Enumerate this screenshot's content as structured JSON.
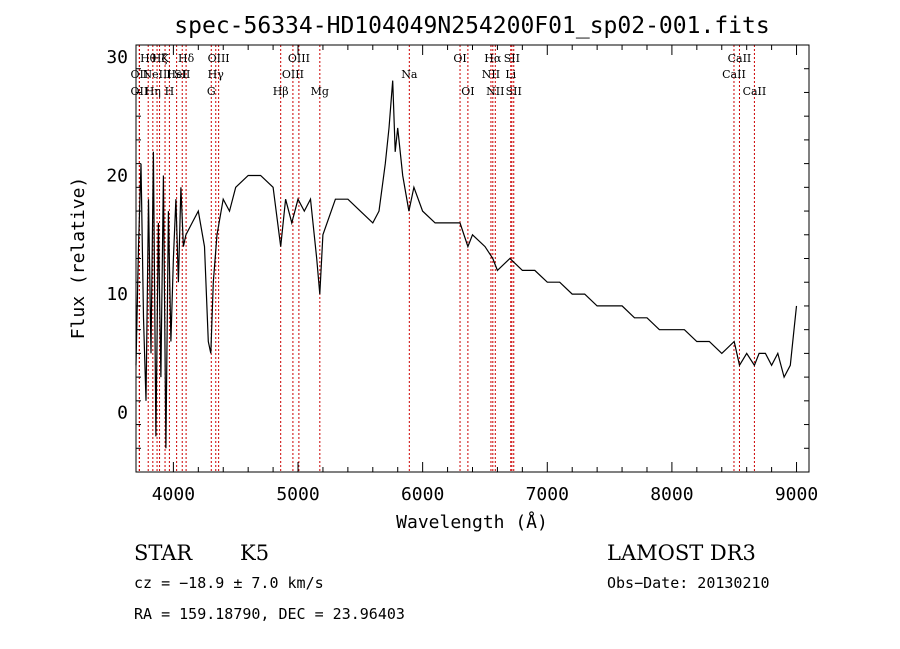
{
  "chart_data": {
    "type": "line",
    "title": "spec-56334-HD104049N254200F01_sp02-001.fits",
    "xlabel": "Wavelength (Å)",
    "ylabel": "Flux (relative)",
    "xlim": [
      3700,
      9100
    ],
    "ylim": [
      -5,
      31
    ],
    "xticks": [
      4000,
      5000,
      6000,
      7000,
      8000,
      9000
    ],
    "yticks": [
      0,
      10,
      20,
      30
    ],
    "grid": false,
    "line_color": "#000000",
    "marker_color": "#cc0000",
    "series": [
      {
        "x": [
          3700,
          3720,
          3740,
          3760,
          3780,
          3800,
          3820,
          3840,
          3860,
          3880,
          3900,
          3920,
          3940,
          3960,
          3980,
          4000,
          4020,
          4040,
          4060,
          4080,
          4100,
          4150,
          4200,
          4250,
          4280,
          4300,
          4320,
          4350,
          4400,
          4450,
          4500,
          4600,
          4700,
          4800,
          4861,
          4900,
          4950,
          5000,
          5050,
          5100,
          5150,
          5175,
          5200,
          5300,
          5400,
          5500,
          5600,
          5650,
          5700,
          5730,
          5760,
          5780,
          5800,
          5840,
          5890,
          5930,
          6000,
          6100,
          6200,
          6300,
          6363,
          6400,
          6500,
          6563,
          6600,
          6700,
          6800,
          6900,
          7000,
          7100,
          7200,
          7300,
          7400,
          7500,
          7600,
          7700,
          7800,
          7900,
          8000,
          8100,
          8200,
          8300,
          8400,
          8500,
          8542,
          8600,
          8662,
          8700,
          8750,
          8800,
          8850,
          8900,
          8950,
          8980,
          9000
        ],
        "y": [
          4,
          14,
          21,
          8,
          1,
          18,
          5,
          22,
          -2,
          16,
          3,
          20,
          -3,
          17,
          6,
          13,
          18,
          11,
          19,
          14,
          15,
          16,
          17,
          14,
          6,
          5,
          11,
          15,
          18,
          17,
          19,
          20,
          20,
          19,
          14,
          18,
          16,
          18,
          17,
          18,
          13,
          10,
          15,
          18,
          18,
          17,
          16,
          17,
          21,
          24,
          28,
          22,
          24,
          20,
          17,
          19,
          17,
          16,
          16,
          16,
          14,
          15,
          14,
          13,
          12,
          13,
          12,
          12,
          11,
          11,
          10,
          10,
          9,
          9,
          9,
          8,
          8,
          7,
          7,
          7,
          6,
          6,
          5,
          6,
          4,
          5,
          4,
          5,
          5,
          4,
          5,
          3,
          4,
          7,
          9
        ]
      }
    ],
    "lines": [
      {
        "wave": 3727,
        "label": "OII",
        "row": 2
      },
      {
        "wave": 3727,
        "label": "OII",
        "row": 3
      },
      {
        "wave": 3798,
        "label": "Hθ",
        "row": 1
      },
      {
        "wave": 3835,
        "label": "Hη",
        "row": 3
      },
      {
        "wave": 3869,
        "label": "NeIII",
        "row": 2
      },
      {
        "wave": 3889,
        "label": "Hζ",
        "row": 1
      },
      {
        "wave": 3933,
        "label": "K",
        "row": 1
      },
      {
        "wave": 3968,
        "label": "H",
        "row": 3
      },
      {
        "wave": 4026,
        "label": "HeI",
        "row": 2
      },
      {
        "wave": 4071,
        "label": "SII",
        "row": 2
      },
      {
        "wave": 4102,
        "label": "Hδ",
        "row": 1
      },
      {
        "wave": 4304,
        "label": "G",
        "row": 3
      },
      {
        "wave": 4340,
        "label": "Hγ",
        "row": 2
      },
      {
        "wave": 4363,
        "label": "OIII",
        "row": 1
      },
      {
        "wave": 4861,
        "label": "Hβ",
        "row": 3
      },
      {
        "wave": 4959,
        "label": "OIII",
        "row": 2
      },
      {
        "wave": 5007,
        "label": "OIII",
        "row": 1
      },
      {
        "wave": 5175,
        "label": "Mg",
        "row": 3
      },
      {
        "wave": 5893,
        "label": "Na",
        "row": 2
      },
      {
        "wave": 6300,
        "label": "OI",
        "row": 1
      },
      {
        "wave": 6363,
        "label": "OI",
        "row": 3
      },
      {
        "wave": 6548,
        "label": "NII",
        "row": 2
      },
      {
        "wave": 6563,
        "label": "Hα",
        "row": 1
      },
      {
        "wave": 6583,
        "label": "NII",
        "row": 3
      },
      {
        "wave": 6707,
        "label": "Li",
        "row": 2
      },
      {
        "wave": 6716,
        "label": "SII",
        "row": 1
      },
      {
        "wave": 6731,
        "label": "SII",
        "row": 3
      },
      {
        "wave": 8498,
        "label": "CaII",
        "row": 2
      },
      {
        "wave": 8542,
        "label": "CaII",
        "row": 1
      },
      {
        "wave": 8662,
        "label": "CaII",
        "row": 3
      }
    ]
  },
  "info": {
    "class": "STAR",
    "subclass": "K5",
    "survey": "LAMOST DR3",
    "cz": "cz = −18.9 ± 7.0 km/s",
    "obs_date": "Obs−Date: 20130210",
    "coords": "RA = 159.18790, DEC =  23.96403"
  }
}
